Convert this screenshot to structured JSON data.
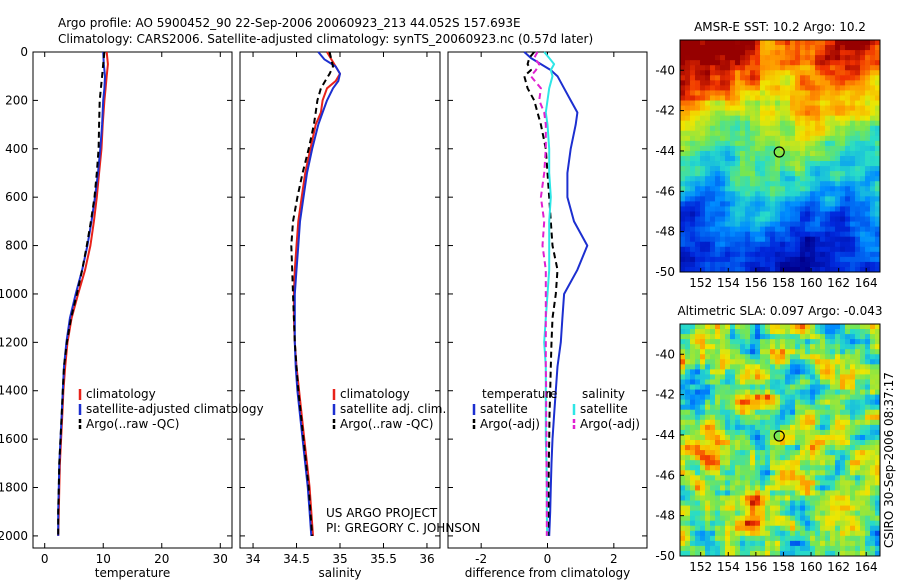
{
  "header": {
    "line1": "Argo profile: AO 5900452_90 22-Sep-2006 20060923_213 44.052S 157.693E",
    "line2": "Climatology: CARS2006. Satellite-adjusted climatology: synTS_20060923.nc (0.57d later)"
  },
  "colors": {
    "climatology": "#e8221a",
    "satellite": "#1c2fd0",
    "argo": "#000000",
    "sal_sat": "#2ee6e6",
    "sal_argo": "#e020d0"
  },
  "chart_data": [
    {
      "type": "line",
      "title": "",
      "xlabel": "temperature",
      "ylabel": "",
      "xlim": [
        -2,
        32
      ],
      "ylim": [
        2050,
        0
      ],
      "xticks": [
        "0",
        "10",
        "20",
        "30"
      ],
      "yticks": [
        "0",
        "200",
        "400",
        "600",
        "800",
        "1000",
        "1200",
        "1400",
        "1600",
        "1800",
        "2000"
      ],
      "y": [
        0,
        50,
        100,
        150,
        200,
        300,
        400,
        500,
        600,
        700,
        800,
        900,
        1000,
        1100,
        1200,
        1300,
        1400,
        1500,
        1600,
        1700,
        1800,
        1900,
        2000
      ],
      "series": [
        {
          "name": "climatology",
          "color": "#e8221a",
          "dash": "",
          "values": [
            10.6,
            10.8,
            10.6,
            10.4,
            10.2,
            9.9,
            9.7,
            9.3,
            8.9,
            8.4,
            7.8,
            6.9,
            5.7,
            4.6,
            3.9,
            3.5,
            3.2,
            3.0,
            2.8,
            2.6,
            2.5,
            2.4,
            2.3
          ]
        },
        {
          "name": "satellite-adjusted climatology",
          "color": "#1c2fd0",
          "dash": "",
          "values": [
            10.0,
            10.1,
            10.3,
            10.2,
            10.0,
            9.8,
            9.5,
            9.1,
            8.6,
            8.0,
            7.3,
            6.4,
            5.3,
            4.3,
            3.7,
            3.3,
            3.1,
            2.9,
            2.7,
            2.5,
            2.4,
            2.3,
            2.3
          ]
        },
        {
          "name": "Argo(..raw -QC)",
          "color": "#000000",
          "dash": "6,4",
          "values": [
            10.2,
            10.0,
            9.8,
            9.6,
            9.4,
            9.3,
            9.2,
            8.9,
            8.5,
            7.9,
            7.2,
            6.4,
            5.5,
            4.5,
            3.8,
            3.3,
            3.1,
            2.9,
            2.7,
            2.5,
            2.4,
            2.3,
            2.3
          ]
        }
      ],
      "legend": [
        "climatology",
        "satellite-adjusted climatology",
        "Argo(..raw -QC)"
      ],
      "legend_position": "lower-right"
    },
    {
      "type": "line",
      "title": "",
      "xlabel": "salinity",
      "ylabel": "",
      "xlim": [
        33.85,
        36.15
      ],
      "ylim": [
        2050,
        0
      ],
      "xticks": [
        "34",
        "34.5",
        "35",
        "35.5",
        "36"
      ],
      "y": [
        0,
        30,
        60,
        90,
        120,
        150,
        200,
        250,
        300,
        400,
        500,
        600,
        700,
        800,
        900,
        1000,
        1100,
        1200,
        1300,
        1400,
        1500,
        1600,
        1700,
        1800,
        1900,
        2000
      ],
      "series": [
        {
          "name": "climatology",
          "color": "#e8221a",
          "dash": "",
          "values": [
            34.85,
            34.9,
            34.95,
            35.0,
            34.95,
            34.85,
            34.8,
            34.78,
            34.72,
            34.66,
            34.6,
            34.56,
            34.52,
            34.5,
            34.48,
            34.47,
            34.47,
            34.48,
            34.5,
            34.53,
            34.56,
            34.59,
            34.62,
            34.65,
            34.67,
            34.69
          ]
        },
        {
          "name": "satellite adj. clim.",
          "color": "#1c2fd0",
          "dash": "",
          "values": [
            34.75,
            34.82,
            34.95,
            35.0,
            34.98,
            34.92,
            34.85,
            34.8,
            34.75,
            34.68,
            34.62,
            34.58,
            34.54,
            34.52,
            34.5,
            34.48,
            34.48,
            34.48,
            34.49,
            34.51,
            34.54,
            34.57,
            34.6,
            34.63,
            34.65,
            34.67
          ]
        },
        {
          "name": "Argo(..raw -QC)",
          "color": "#000000",
          "dash": "6,4",
          "values": [
            34.88,
            34.9,
            34.92,
            34.88,
            34.83,
            34.78,
            34.74,
            34.72,
            34.7,
            34.64,
            34.57,
            34.51,
            34.46,
            34.44,
            34.45,
            34.46,
            34.47,
            34.48,
            34.5,
            34.52,
            34.55,
            34.58,
            34.61,
            34.64,
            34.66,
            34.68
          ]
        }
      ],
      "legend": [
        "climatology",
        "satellite adj. clim.",
        "Argo(..raw -QC)"
      ],
      "legend_position": "lower-right",
      "annotation": [
        "US ARGO PROJECT",
        "PI: GREGORY C. JOHNSON"
      ]
    },
    {
      "type": "line",
      "title": "",
      "xlabel": "difference from climatology",
      "ylabel": "",
      "xlim": [
        -3,
        3
      ],
      "ylim": [
        2050,
        0
      ],
      "xticks": [
        "-2",
        "0",
        "2"
      ],
      "y": [
        0,
        25,
        50,
        75,
        100,
        150,
        200,
        250,
        300,
        400,
        500,
        600,
        700,
        800,
        900,
        1000,
        1100,
        1200,
        1300,
        1400,
        1500,
        1600,
        1700,
        1800,
        1900,
        2000
      ],
      "series": [
        {
          "name": "temperature satellite",
          "color": "#1c2fd0",
          "dash": "",
          "values": [
            -0.7,
            -0.5,
            -0.2,
            0.1,
            0.3,
            0.5,
            0.7,
            0.9,
            0.85,
            0.7,
            0.6,
            0.6,
            0.8,
            1.2,
            0.9,
            0.5,
            0.45,
            0.4,
            0.3,
            0.25,
            0.2,
            0.15,
            0.12,
            0.1,
            0.08,
            0.05
          ]
        },
        {
          "name": "temperature Argo(-adj)",
          "color": "#000000",
          "dash": "6,4",
          "values": [
            -0.4,
            -0.55,
            -0.6,
            -0.5,
            -0.7,
            -0.6,
            -0.4,
            -0.3,
            -0.2,
            -0.05,
            0.0,
            0.05,
            0.1,
            0.15,
            0.3,
            0.25,
            0.15,
            0.12,
            0.1,
            0.08,
            0.06,
            0.05,
            0.04,
            0.03,
            0.03,
            0.02
          ]
        },
        {
          "name": "salinity satellite",
          "color": "#2ee6e6",
          "dash": "",
          "values": [
            -0.1,
            0.05,
            0.2,
            0.1,
            0.15,
            0.05,
            0.0,
            -0.05,
            0.0,
            0.05,
            0.05,
            0.1,
            0.05,
            0.05,
            0.05,
            0.0,
            -0.05,
            -0.1,
            -0.05,
            -0.05,
            -0.05,
            -0.05,
            -0.03,
            -0.02,
            -0.02,
            -0.01
          ]
        },
        {
          "name": "salinity Argo(-adj)",
          "color": "#e020d0",
          "dash": "6,4",
          "values": [
            -0.3,
            -0.4,
            -0.25,
            -0.35,
            -0.5,
            -0.2,
            -0.25,
            -0.1,
            -0.05,
            -0.05,
            -0.1,
            -0.2,
            -0.1,
            -0.15,
            -0.05,
            -0.05,
            -0.05,
            -0.05,
            -0.05,
            -0.04,
            -0.04,
            -0.03,
            -0.03,
            -0.02,
            -0.02,
            -0.02
          ]
        }
      ],
      "legend_headers": [
        "temperature",
        "salinity"
      ],
      "legend": [
        "satellite",
        "Argo(-adj)",
        "satellite",
        "Argo(-adj)"
      ],
      "legend_position": "lower-center"
    },
    {
      "type": "heatmap",
      "title": "AMSR-E SST: 10.2 Argo: 10.2",
      "xlim": [
        150.5,
        165
      ],
      "ylim": [
        -50,
        -38.5
      ],
      "xticks": [
        "152",
        "154",
        "156",
        "158",
        "160",
        "162",
        "164"
      ],
      "yticks": [
        "-40",
        "-42",
        "-44",
        "-46",
        "-48",
        "-50"
      ],
      "marker": {
        "lon": 157.693,
        "lat": -44.052
      }
    },
    {
      "type": "heatmap",
      "title": "Altimetric SLA: 0.097 Argo: -0.043",
      "xlim": [
        150.5,
        165
      ],
      "ylim": [
        -50,
        -38.5
      ],
      "xticks": [
        "152",
        "154",
        "156",
        "158",
        "160",
        "162",
        "164"
      ],
      "yticks": [
        "-40",
        "-42",
        "-44",
        "-46",
        "-48",
        "-50"
      ],
      "marker": {
        "lon": 157.693,
        "lat": -44.052
      }
    }
  ],
  "side_label": "CSIRO 30-Sep-2006 08:37:17"
}
